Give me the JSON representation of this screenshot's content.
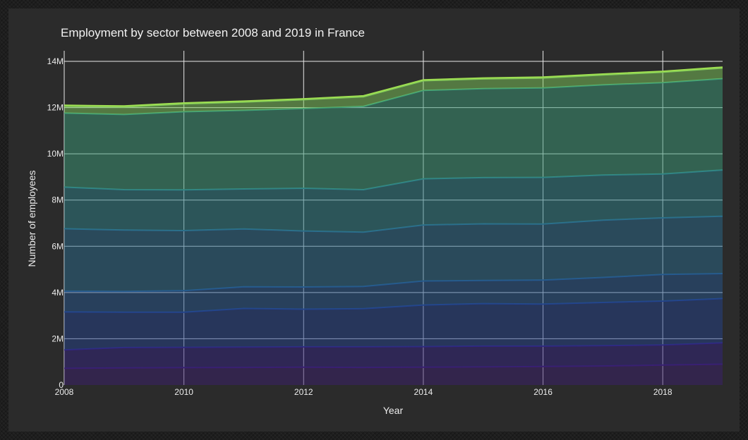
{
  "chart_data": {
    "type": "area",
    "title": "Employment by sector between 2008 and 2019 in France",
    "xlabel": "Year",
    "ylabel": "Number of employees",
    "x": [
      2008,
      2009,
      2010,
      2011,
      2012,
      2013,
      2014,
      2015,
      2016,
      2017,
      2018,
      2019
    ],
    "xlim": [
      2008,
      2019
    ],
    "ylim": [
      0,
      14500000
    ],
    "x_ticks": [
      2008,
      2010,
      2012,
      2014,
      2016,
      2018
    ],
    "x_tick_labels": [
      "2008",
      "2010",
      "2012",
      "2014",
      "2016",
      "2018"
    ],
    "y_ticks": [
      0,
      2000000,
      4000000,
      6000000,
      8000000,
      10000000,
      12000000,
      14000000
    ],
    "y_tick_labels": [
      "0",
      "2M",
      "4M",
      "6M",
      "8M",
      "10M",
      "12M",
      "14M"
    ],
    "grid": true,
    "stacked": true,
    "series": [
      {
        "color": "#3b1f6e",
        "values": [
          720000,
          740000,
          750000,
          760000,
          770000,
          760000,
          770000,
          780000,
          800000,
          820000,
          860000,
          900000
        ]
      },
      {
        "color": "#33237f",
        "values": [
          800000,
          880000,
          880000,
          880000,
          880000,
          890000,
          890000,
          900000,
          880000,
          880000,
          870000,
          920000
        ]
      },
      {
        "color": "#23418c",
        "values": [
          1640000,
          1530000,
          1520000,
          1670000,
          1630000,
          1650000,
          1800000,
          1840000,
          1820000,
          1870000,
          1900000,
          1920000
        ]
      },
      {
        "color": "#25568e",
        "values": [
          900000,
          900000,
          930000,
          940000,
          960000,
          960000,
          1040000,
          1000000,
          1040000,
          1080000,
          1150000,
          1080000
        ]
      },
      {
        "color": "#2a6a8c",
        "values": [
          2700000,
          2650000,
          2600000,
          2500000,
          2420000,
          2350000,
          2420000,
          2450000,
          2420000,
          2480000,
          2450000,
          2480000
        ]
      },
      {
        "color": "#2e7f88",
        "values": [
          1800000,
          1750000,
          1760000,
          1730000,
          1850000,
          1840000,
          2000000,
          2000000,
          2020000,
          1950000,
          1900000,
          2000000
        ]
      },
      {
        "color": "#3b9a78",
        "values": [
          3200000,
          3250000,
          3380000,
          3400000,
          3450000,
          3600000,
          3820000,
          3850000,
          3870000,
          3900000,
          3950000,
          3950000
        ]
      },
      {
        "color": "#7ec75a",
        "values": [
          300000,
          330000,
          340000,
          360000,
          380000,
          420000,
          420000,
          420000,
          430000,
          430000,
          450000,
          460000
        ]
      },
      {
        "color": "#9ede52",
        "values": [
          40000,
          40000,
          40000,
          40000,
          40000,
          40000,
          40000,
          40000,
          40000,
          40000,
          40000,
          40000
        ]
      }
    ]
  }
}
